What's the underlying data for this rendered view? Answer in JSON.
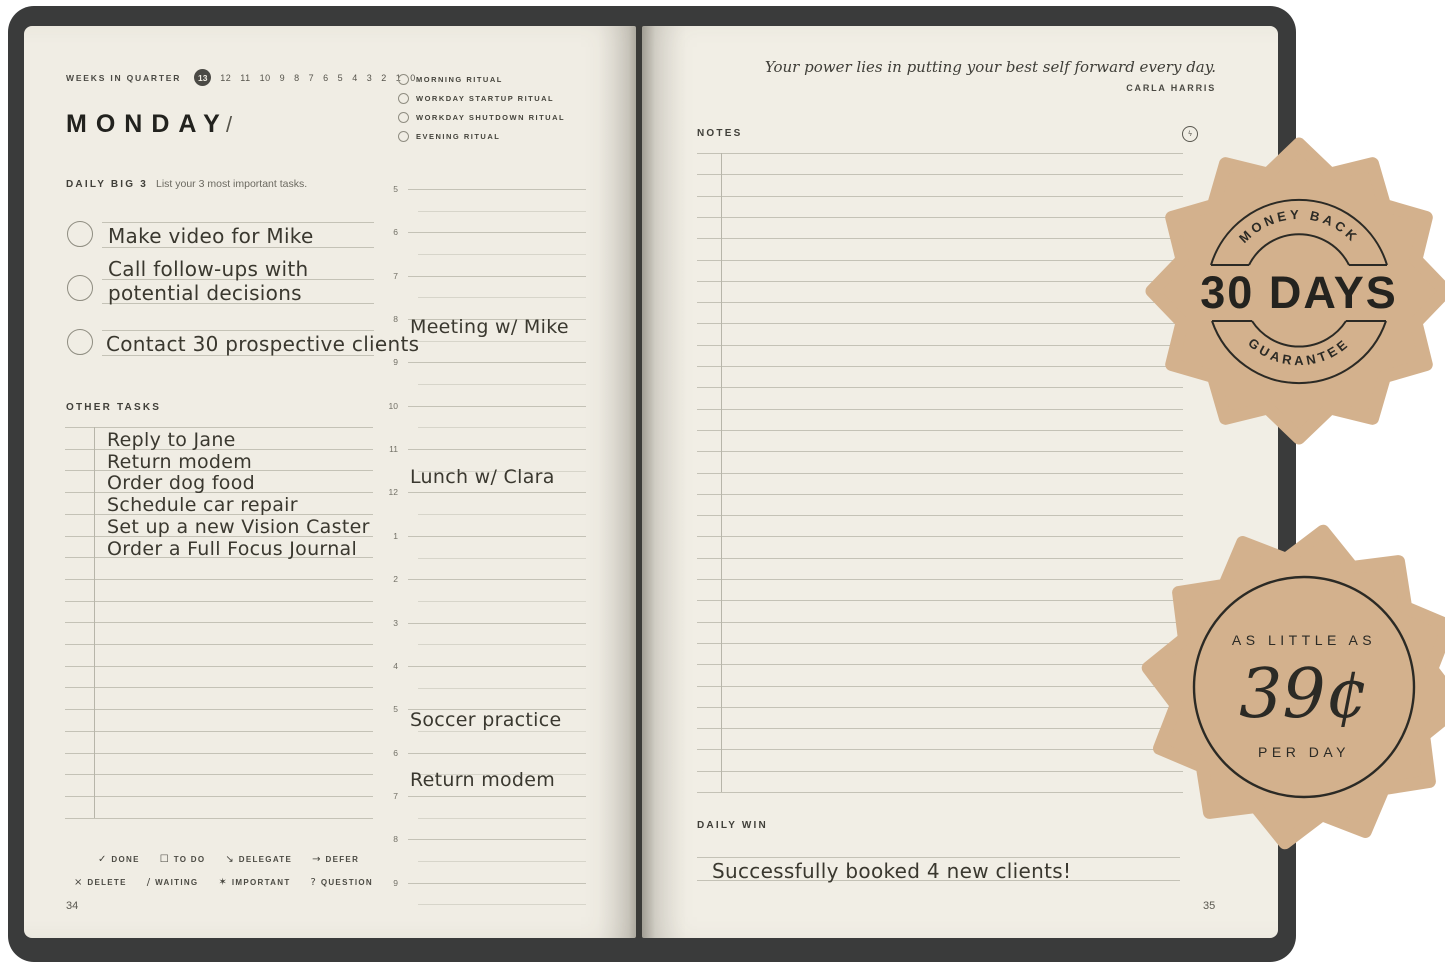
{
  "colors": {
    "cover": "#3a3b3b",
    "page": "#f0ede4",
    "rule_line": "#c4c2b6",
    "badge_bg": "#d3b18d",
    "badge_text": "#2b2a25"
  },
  "left_page": {
    "weeks": {
      "label": "WEEKS IN QUARTER",
      "current": "13",
      "remaining": [
        "12",
        "11",
        "10",
        "9",
        "8",
        "7",
        "6",
        "5",
        "4",
        "3",
        "2",
        "1",
        "0"
      ]
    },
    "day": {
      "title": "MONDAY",
      "separator": "/"
    },
    "daily_big3": {
      "heading": "DAILY BIG 3",
      "subheading": "List your 3 most important tasks.",
      "tasks": [
        {
          "lines": [
            "Make video for Mike"
          ]
        },
        {
          "lines": [
            "Call follow-ups with",
            "potential decisions"
          ]
        },
        {
          "lines": [
            "Contact 30 prospective clients"
          ]
        }
      ]
    },
    "other_tasks": {
      "heading": "OTHER TASKS",
      "items": [
        "Reply to Jane",
        "Return modem",
        "Order dog food",
        "Schedule car repair",
        "Set up a new Vision Caster",
        "Order a Full Focus Journal"
      ]
    },
    "legend": {
      "row1": [
        {
          "symbol": "✓",
          "label": "DONE"
        },
        {
          "symbol": "☐",
          "label": "TO DO"
        },
        {
          "symbol": "↘",
          "label": "DELEGATE"
        },
        {
          "symbol": "→",
          "label": "DEFER"
        }
      ],
      "row2": [
        {
          "symbol": "×",
          "label": "DELETE"
        },
        {
          "symbol": "/",
          "label": "WAITING"
        },
        {
          "symbol": "✶",
          "label": "IMPORTANT"
        },
        {
          "symbol": "?",
          "label": "QUESTION"
        }
      ]
    },
    "page_number": "34"
  },
  "schedule": {
    "rituals": [
      "MORNING RITUAL",
      "WORKDAY STARTUP RITUAL",
      "WORKDAY SHUTDOWN RITUAL",
      "EVENING RITUAL"
    ],
    "hours": [
      "5",
      "6",
      "7",
      "8",
      "9",
      "10",
      "11",
      "12",
      "1",
      "2",
      "3",
      "4",
      "5",
      "6",
      "7",
      "8",
      "9"
    ],
    "appointments": [
      {
        "text": "Meeting w/ Mike"
      },
      {
        "text": "Lunch w/ Clara"
      },
      {
        "text": "Soccer practice"
      },
      {
        "text": "Return modem"
      }
    ]
  },
  "right_page": {
    "quote": {
      "text": "Your power lies in putting your best self forward every day.",
      "author": "CARLA HARRIS"
    },
    "notes": {
      "heading": "NOTES"
    },
    "daily_win": {
      "heading": "DAILY WIN",
      "entry": "Successfully booked 4 new clients!"
    },
    "page_number": "35"
  },
  "badges": {
    "money_back": {
      "top": "MONEY BACK",
      "center": "30 DAYS",
      "bottom": "GUARANTEE"
    },
    "price": {
      "line1": "AS LITTLE AS",
      "price": "39¢",
      "line2": "PER DAY"
    }
  }
}
